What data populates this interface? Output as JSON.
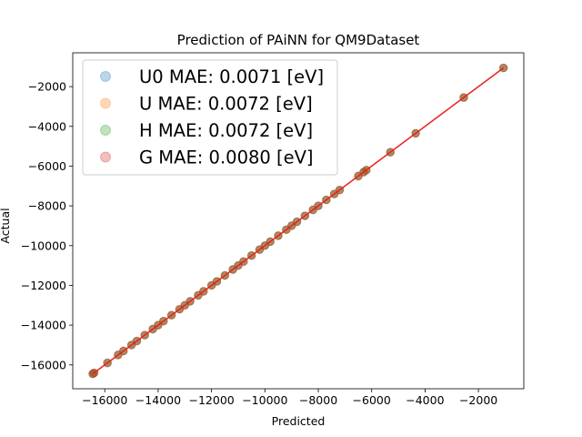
{
  "chart_data": {
    "type": "scatter",
    "title": "Prediction of PAiNN for QM9Dataset",
    "xlabel": "Predicted",
    "ylabel": "Actual",
    "xlim": [
      -17200,
      -300
    ],
    "ylim": [
      -17200,
      -300
    ],
    "x_ticks": [
      -16000,
      -14000,
      -12000,
      -10000,
      -8000,
      -6000,
      -4000,
      -2000
    ],
    "y_ticks": [
      -16000,
      -14000,
      -12000,
      -10000,
      -8000,
      -6000,
      -4000,
      -2000
    ],
    "x_tick_labels": [
      "−16000",
      "−14000",
      "−12000",
      "−10000",
      "−8000",
      "−6000",
      "−4000",
      "−2000"
    ],
    "y_tick_labels": [
      "−16000",
      "−14000",
      "−12000",
      "−10000",
      "−8000",
      "−6000",
      "−4000",
      "−2000"
    ],
    "grid": false,
    "legend_position": "top-left",
    "fit_line": {
      "x": [
        -16450,
        -1060
      ],
      "y": [
        -16450,
        -1060
      ],
      "color": "#e8211b"
    },
    "series": [
      {
        "name": "U0 MAE: 0.0071 [eV]",
        "color": "#1f77b4",
        "x": [
          -16450,
          -16400,
          -15900,
          -15500,
          -15300,
          -15000,
          -14800,
          -14500,
          -14200,
          -14000,
          -13800,
          -13500,
          -13200,
          -13000,
          -12800,
          -12500,
          -12300,
          -12000,
          -11800,
          -11500,
          -11200,
          -11000,
          -10800,
          -10500,
          -10200,
          -10000,
          -9800,
          -9500,
          -9200,
          -9000,
          -8800,
          -8500,
          -8200,
          -8000,
          -7700,
          -7400,
          -7200,
          -6500,
          -6300,
          -6200,
          -5300,
          -4350,
          -2550,
          -1060
        ],
        "y": [
          -16450,
          -16400,
          -15900,
          -15500,
          -15300,
          -15000,
          -14800,
          -14500,
          -14200,
          -14000,
          -13800,
          -13500,
          -13200,
          -13000,
          -12800,
          -12500,
          -12300,
          -12000,
          -11800,
          -11500,
          -11200,
          -11000,
          -10800,
          -10500,
          -10200,
          -10000,
          -9800,
          -9500,
          -9200,
          -9000,
          -8800,
          -8500,
          -8200,
          -8000,
          -7700,
          -7400,
          -7200,
          -6500,
          -6300,
          -6200,
          -5300,
          -4350,
          -2550,
          -1060
        ]
      },
      {
        "name": "U MAE: 0.0072 [eV]",
        "color": "#ff7f0e",
        "x": [
          -16450,
          -16400,
          -15900,
          -15500,
          -15300,
          -15000,
          -14800,
          -14500,
          -14200,
          -14000,
          -13800,
          -13500,
          -13200,
          -13000,
          -12800,
          -12500,
          -12300,
          -12000,
          -11800,
          -11500,
          -11200,
          -11000,
          -10800,
          -10500,
          -10200,
          -10000,
          -9800,
          -9500,
          -9200,
          -9000,
          -8800,
          -8500,
          -8200,
          -8000,
          -7700,
          -7400,
          -7200,
          -6500,
          -6300,
          -6200,
          -5300,
          -4350,
          -2550,
          -1060
        ],
        "y": [
          -16450,
          -16400,
          -15900,
          -15500,
          -15300,
          -15000,
          -14800,
          -14500,
          -14200,
          -14000,
          -13800,
          -13500,
          -13200,
          -13000,
          -12800,
          -12500,
          -12300,
          -12000,
          -11800,
          -11500,
          -11200,
          -11000,
          -10800,
          -10500,
          -10200,
          -10000,
          -9800,
          -9500,
          -9200,
          -9000,
          -8800,
          -8500,
          -8200,
          -8000,
          -7700,
          -7400,
          -7200,
          -6500,
          -6300,
          -6200,
          -5300,
          -4350,
          -2550,
          -1060
        ]
      },
      {
        "name": "H MAE: 0.0072 [eV]",
        "color": "#2ca02c",
        "x": [
          -16450,
          -16400,
          -15900,
          -15500,
          -15300,
          -15000,
          -14800,
          -14500,
          -14200,
          -14000,
          -13800,
          -13500,
          -13200,
          -13000,
          -12800,
          -12500,
          -12300,
          -12000,
          -11800,
          -11500,
          -11200,
          -11000,
          -10800,
          -10500,
          -10200,
          -10000,
          -9800,
          -9500,
          -9200,
          -9000,
          -8800,
          -8500,
          -8200,
          -8000,
          -7700,
          -7400,
          -7200,
          -6500,
          -6300,
          -6200,
          -5300,
          -4350,
          -2550,
          -1060
        ],
        "y": [
          -16450,
          -16400,
          -15900,
          -15500,
          -15300,
          -15000,
          -14800,
          -14500,
          -14200,
          -14000,
          -13800,
          -13500,
          -13200,
          -13000,
          -12800,
          -12500,
          -12300,
          -12000,
          -11800,
          -11500,
          -11200,
          -11000,
          -10800,
          -10500,
          -10200,
          -10000,
          -9800,
          -9500,
          -9200,
          -9000,
          -8800,
          -8500,
          -8200,
          -8000,
          -7700,
          -7400,
          -7200,
          -6500,
          -6300,
          -6200,
          -5300,
          -4350,
          -2550,
          -1060
        ]
      },
      {
        "name": "G MAE: 0.0080 [eV]",
        "color": "#d62728",
        "x": [
          -16450,
          -16400,
          -15900,
          -15500,
          -15300,
          -15000,
          -14800,
          -14500,
          -14200,
          -14000,
          -13800,
          -13500,
          -13200,
          -13000,
          -12800,
          -12500,
          -12300,
          -12000,
          -11800,
          -11500,
          -11200,
          -11000,
          -10800,
          -10500,
          -10200,
          -10000,
          -9800,
          -9500,
          -9200,
          -9000,
          -8800,
          -8500,
          -8200,
          -8000,
          -7700,
          -7400,
          -7200,
          -6500,
          -6300,
          -6200,
          -5300,
          -4350,
          -2550,
          -1060
        ],
        "y": [
          -16450,
          -16400,
          -15900,
          -15500,
          -15300,
          -15000,
          -14800,
          -14500,
          -14200,
          -14000,
          -13800,
          -13500,
          -13200,
          -13000,
          -12800,
          -12500,
          -12300,
          -12000,
          -11800,
          -11500,
          -11200,
          -11000,
          -10800,
          -10500,
          -10200,
          -10000,
          -9800,
          -9500,
          -9200,
          -9000,
          -8800,
          -8500,
          -8200,
          -8000,
          -7700,
          -7400,
          -7200,
          -6500,
          -6300,
          -6200,
          -5300,
          -4350,
          -2550,
          -1060
        ]
      }
    ]
  }
}
